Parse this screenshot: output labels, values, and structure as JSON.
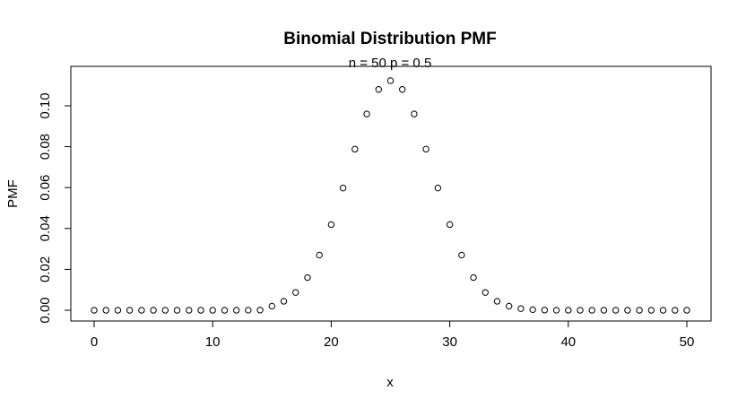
{
  "chart_data": {
    "type": "scatter",
    "title": "Binomial Distribution PMF",
    "subtitle": "n = 50  p = 0.5",
    "xlabel": "x",
    "ylabel": "PMF",
    "xlim": [
      0,
      50
    ],
    "ylim": [
      0,
      0.112
    ],
    "grid": false,
    "marker": "open-circle",
    "x_ticks": [
      "0",
      "10",
      "20",
      "30",
      "40",
      "50"
    ],
    "y_ticks": [
      "0.00",
      "0.02",
      "0.04",
      "0.06",
      "0.08",
      "0.10"
    ],
    "x": [
      0,
      1,
      2,
      3,
      4,
      5,
      6,
      7,
      8,
      9,
      10,
      11,
      12,
      13,
      14,
      15,
      16,
      17,
      18,
      19,
      20,
      21,
      22,
      23,
      24,
      25,
      26,
      27,
      28,
      29,
      30,
      31,
      32,
      33,
      34,
      35,
      36,
      37,
      38,
      39,
      40,
      41,
      42,
      43,
      44,
      45,
      46,
      47,
      48,
      49,
      50
    ],
    "y": [
      0,
      0,
      0,
      0,
      0,
      0,
      0,
      0,
      0,
      0,
      0,
      0,
      1e-05,
      3e-05,
      0.0001,
      0.002,
      0.0044,
      0.0087,
      0.016,
      0.027,
      0.0419,
      0.0598,
      0.0788,
      0.096,
      0.108,
      0.1123,
      0.108,
      0.096,
      0.0788,
      0.0598,
      0.0419,
      0.027,
      0.016,
      0.0087,
      0.0044,
      0.002,
      0.0008,
      0.0003,
      0.0001,
      3e-05,
      1e-05,
      0,
      0,
      0,
      0,
      0,
      0,
      0,
      0,
      0,
      0
    ]
  }
}
